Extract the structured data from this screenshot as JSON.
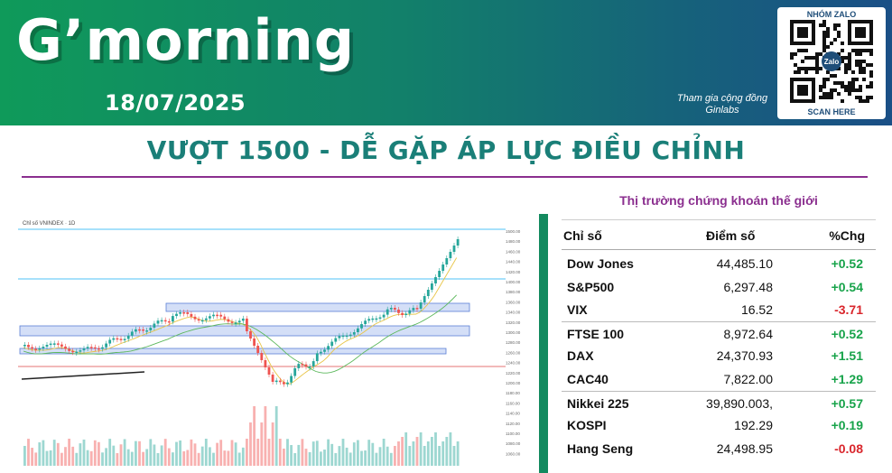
{
  "banner": {
    "greeting": "G’morning",
    "date": "18/07/2025",
    "community_line1": "Tham gia cộng đồng",
    "community_line2": "Ginlabs",
    "qr_title": "NHÓM ZALO",
    "qr_logo": "Zalo",
    "qr_scan": "SCAN HERE"
  },
  "headline": "VƯỢT 1500 - DỄ GẶP ÁP LỰC ĐIỀU CHỈNH",
  "chart": {
    "header": "Chỉ số VNINDEX · 1D",
    "accent_line": "#4fc3f7",
    "zone_fill": "#c9d7f5",
    "zone_stroke": "#5b7fd6",
    "price_labels": [
      "1500.00",
      "1480.00",
      "1460.00",
      "1440.00",
      "1420.00",
      "1400.00",
      "1380.00",
      "1360.00",
      "1340.00",
      "1320.00",
      "1300.00",
      "1280.00",
      "1260.00",
      "1240.00",
      "1220.00",
      "1200.00",
      "1180.00",
      "1160.00",
      "1140.00",
      "1120.00",
      "1100.00",
      "1080.00",
      "1060.00"
    ]
  },
  "world_markets": {
    "title": "Thị trường chứng khoán thế giới",
    "col_index": "Chỉ số",
    "col_points": "Điểm số",
    "col_change": "%Chg",
    "rows": [
      {
        "name": "Dow Jones",
        "points": "44,485.10",
        "change": "+0.52",
        "dir": "up"
      },
      {
        "name": "S&P500",
        "points": "6,297.48",
        "change": "+0.54",
        "dir": "up"
      },
      {
        "name": "VIX",
        "points": "16.52",
        "change": "-3.71",
        "dir": "down"
      },
      {
        "name": "FTSE 100",
        "points": "8,972.64",
        "change": "+0.52",
        "dir": "up"
      },
      {
        "name": "DAX",
        "points": "24,370.93",
        "change": "+1.51",
        "dir": "up"
      },
      {
        "name": "CAC40",
        "points": "7,822.00",
        "change": "+1.29",
        "dir": "up"
      },
      {
        "name": "Nikkei 225",
        "points": "39,890.003,",
        "change": "+0.57",
        "dir": "up"
      },
      {
        "name": "KOSPI",
        "points": "192.29",
        "change": "+0.19",
        "dir": "up"
      },
      {
        "name": "Hang Seng",
        "points": "24,498.95",
        "change": "-0.08",
        "dir": "down"
      }
    ]
  },
  "colors": {
    "up": "#17a34a",
    "down": "#d9262c",
    "headline": "#1a7f78",
    "accent_purple": "#8b2f8f"
  }
}
